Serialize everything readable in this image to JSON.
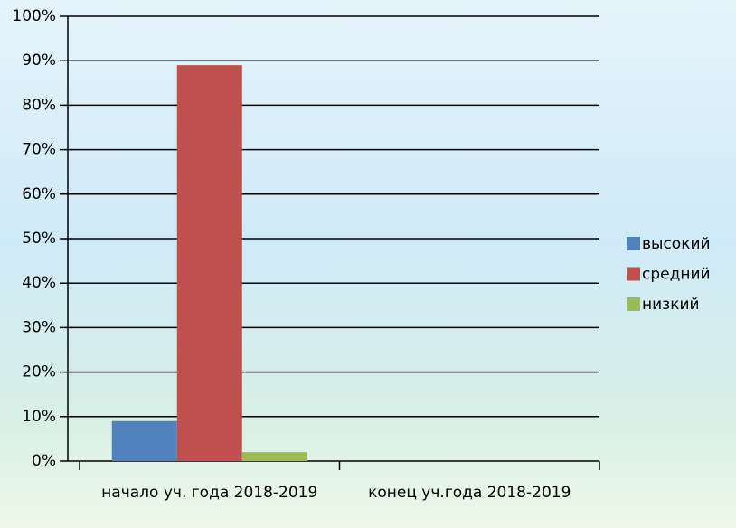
{
  "chart_data": {
    "type": "bar",
    "categories": [
      "начало уч. года 2018-2019",
      "конец уч.года 2018-2019"
    ],
    "series": [
      {
        "name": "высокий",
        "color": "#4f81bd",
        "values": [
          9,
          null
        ]
      },
      {
        "name": "средний",
        "color": "#c0504d",
        "values": [
          89,
          null
        ]
      },
      {
        "name": "низкий",
        "color": "#9bbb59",
        "values": [
          2,
          null
        ]
      }
    ],
    "ylim": [
      0,
      100
    ],
    "yticks": [
      {
        "value": 0,
        "label": "0%"
      },
      {
        "value": 10,
        "label": "10%"
      },
      {
        "value": 20,
        "label": "20%"
      },
      {
        "value": 30,
        "label": "30%"
      },
      {
        "value": 40,
        "label": "40%"
      },
      {
        "value": 50,
        "label": "50%"
      },
      {
        "value": 60,
        "label": "60%"
      },
      {
        "value": 70,
        "label": "70%"
      },
      {
        "value": 80,
        "label": "80%"
      },
      {
        "value": 90,
        "label": "90%"
      },
      {
        "value": 100,
        "label": "100%"
      }
    ],
    "grid": true,
    "legend": "right"
  }
}
